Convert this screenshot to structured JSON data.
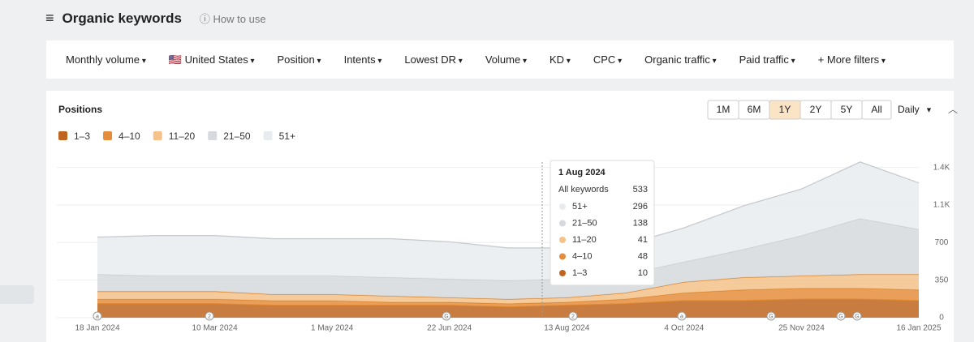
{
  "header": {
    "title": "Organic keywords",
    "help": "How to use"
  },
  "filters": [
    "Monthly volume",
    "United States",
    "Position",
    "Intents",
    "Lowest DR",
    "Volume",
    "KD",
    "CPC",
    "Organic traffic",
    "Paid traffic"
  ],
  "more_filters": "More filters",
  "panel": {
    "title": "Positions",
    "ranges": [
      "1M",
      "6M",
      "1Y",
      "2Y",
      "5Y",
      "All"
    ],
    "active_range": "1Y",
    "interval": "Daily"
  },
  "chart_data": {
    "type": "area",
    "stacked": true,
    "categories": [
      "18 Jan 2024",
      null,
      "10 Mar 2024",
      null,
      "1 May 2024",
      null,
      "22 Jun 2024",
      null,
      "13 Aug 2024",
      null,
      "4 Oct 2024",
      null,
      "25 Nov 2024",
      null,
      "16 Jan 2025"
    ],
    "series": [
      {
        "name": "1–3",
        "color": "#c0651f",
        "values": [
          130,
          130,
          130,
          116,
          116,
          116,
          116,
          101,
          116,
          130,
          159,
          159,
          173,
          173,
          159
        ]
      },
      {
        "name": "4–10",
        "color": "#e58d3c",
        "values": [
          43,
          43,
          43,
          43,
          43,
          28,
          28,
          29,
          28,
          43,
          72,
          101,
          101,
          101,
          101
        ]
      },
      {
        "name": "11–20",
        "color": "#f5c28a",
        "values": [
          72,
          72,
          72,
          58,
          58,
          58,
          44,
          43,
          44,
          58,
          101,
          115,
          116,
          130,
          144
        ]
      },
      {
        "name": "21–50",
        "color": "#d6d9dd",
        "values": [
          159,
          145,
          145,
          173,
          173,
          173,
          173,
          173,
          173,
          173,
          188,
          260,
          375,
          520,
          419
        ]
      },
      {
        "name": "51+",
        "color": "#e9ecef",
        "values": [
          347,
          375,
          375,
          346,
          346,
          361,
          346,
          304,
          289,
          275,
          317,
          405,
          434,
          527,
          433
        ]
      }
    ],
    "ylim": [
      0,
      1450
    ],
    "yticks": [
      0,
      350,
      700,
      {
        "value": 1050,
        "label": "1.1K"
      },
      {
        "value": 1400,
        "label": "1.4K"
      }
    ],
    "grid": true,
    "annotations": [
      "a",
      "2",
      "G",
      "2",
      "a",
      "G",
      "G",
      "G"
    ],
    "tooltip": {
      "date": "1 Aug 2024",
      "total_label": "All keywords",
      "total": 533,
      "values": [
        296,
        138,
        41,
        48,
        10
      ]
    }
  }
}
